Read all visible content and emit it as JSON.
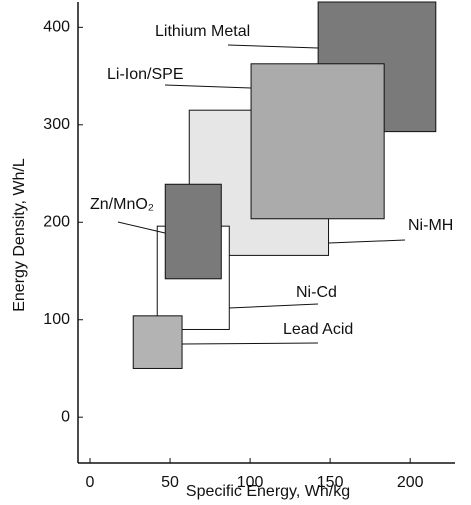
{
  "chart_data": {
    "type": "range-box",
    "xlabel": "Specific Energy, Wh/kg",
    "ylabel": "Energy Density, Wh/L",
    "xlim": [
      -7.5,
      228
    ],
    "ylim": [
      -47,
      426
    ],
    "xticks": [
      0,
      50,
      100,
      150,
      200
    ],
    "yticks": [
      0,
      100,
      200,
      300,
      400
    ],
    "series": [
      {
        "name": "Ni-MH",
        "color": "#e6e6e6",
        "x": [
          62,
          149
        ],
        "y": [
          166,
          315
        ]
      },
      {
        "name": "Lithium Metal",
        "color": "#7a7a7a",
        "x": [
          142.5,
          216
        ],
        "y": [
          293,
          426
        ]
      },
      {
        "name": "Li-Ion/SPE",
        "color": "#ababab",
        "x": [
          100.6,
          183.75
        ],
        "y": [
          203.6,
          362.6
        ]
      },
      {
        "name": "Ni-Cd",
        "color": "#ffffff",
        "x": [
          42,
          87
        ],
        "y": [
          90,
          196
        ]
      },
      {
        "name": "Zn/MnO₂",
        "color": "#7a7a7a",
        "x": [
          47,
          82
        ],
        "y": [
          142,
          239
        ]
      },
      {
        "name": "Lead Acid",
        "color": "#b3b3b3",
        "x": [
          27,
          57.5
        ],
        "y": [
          50,
          104
        ]
      }
    ]
  }
}
